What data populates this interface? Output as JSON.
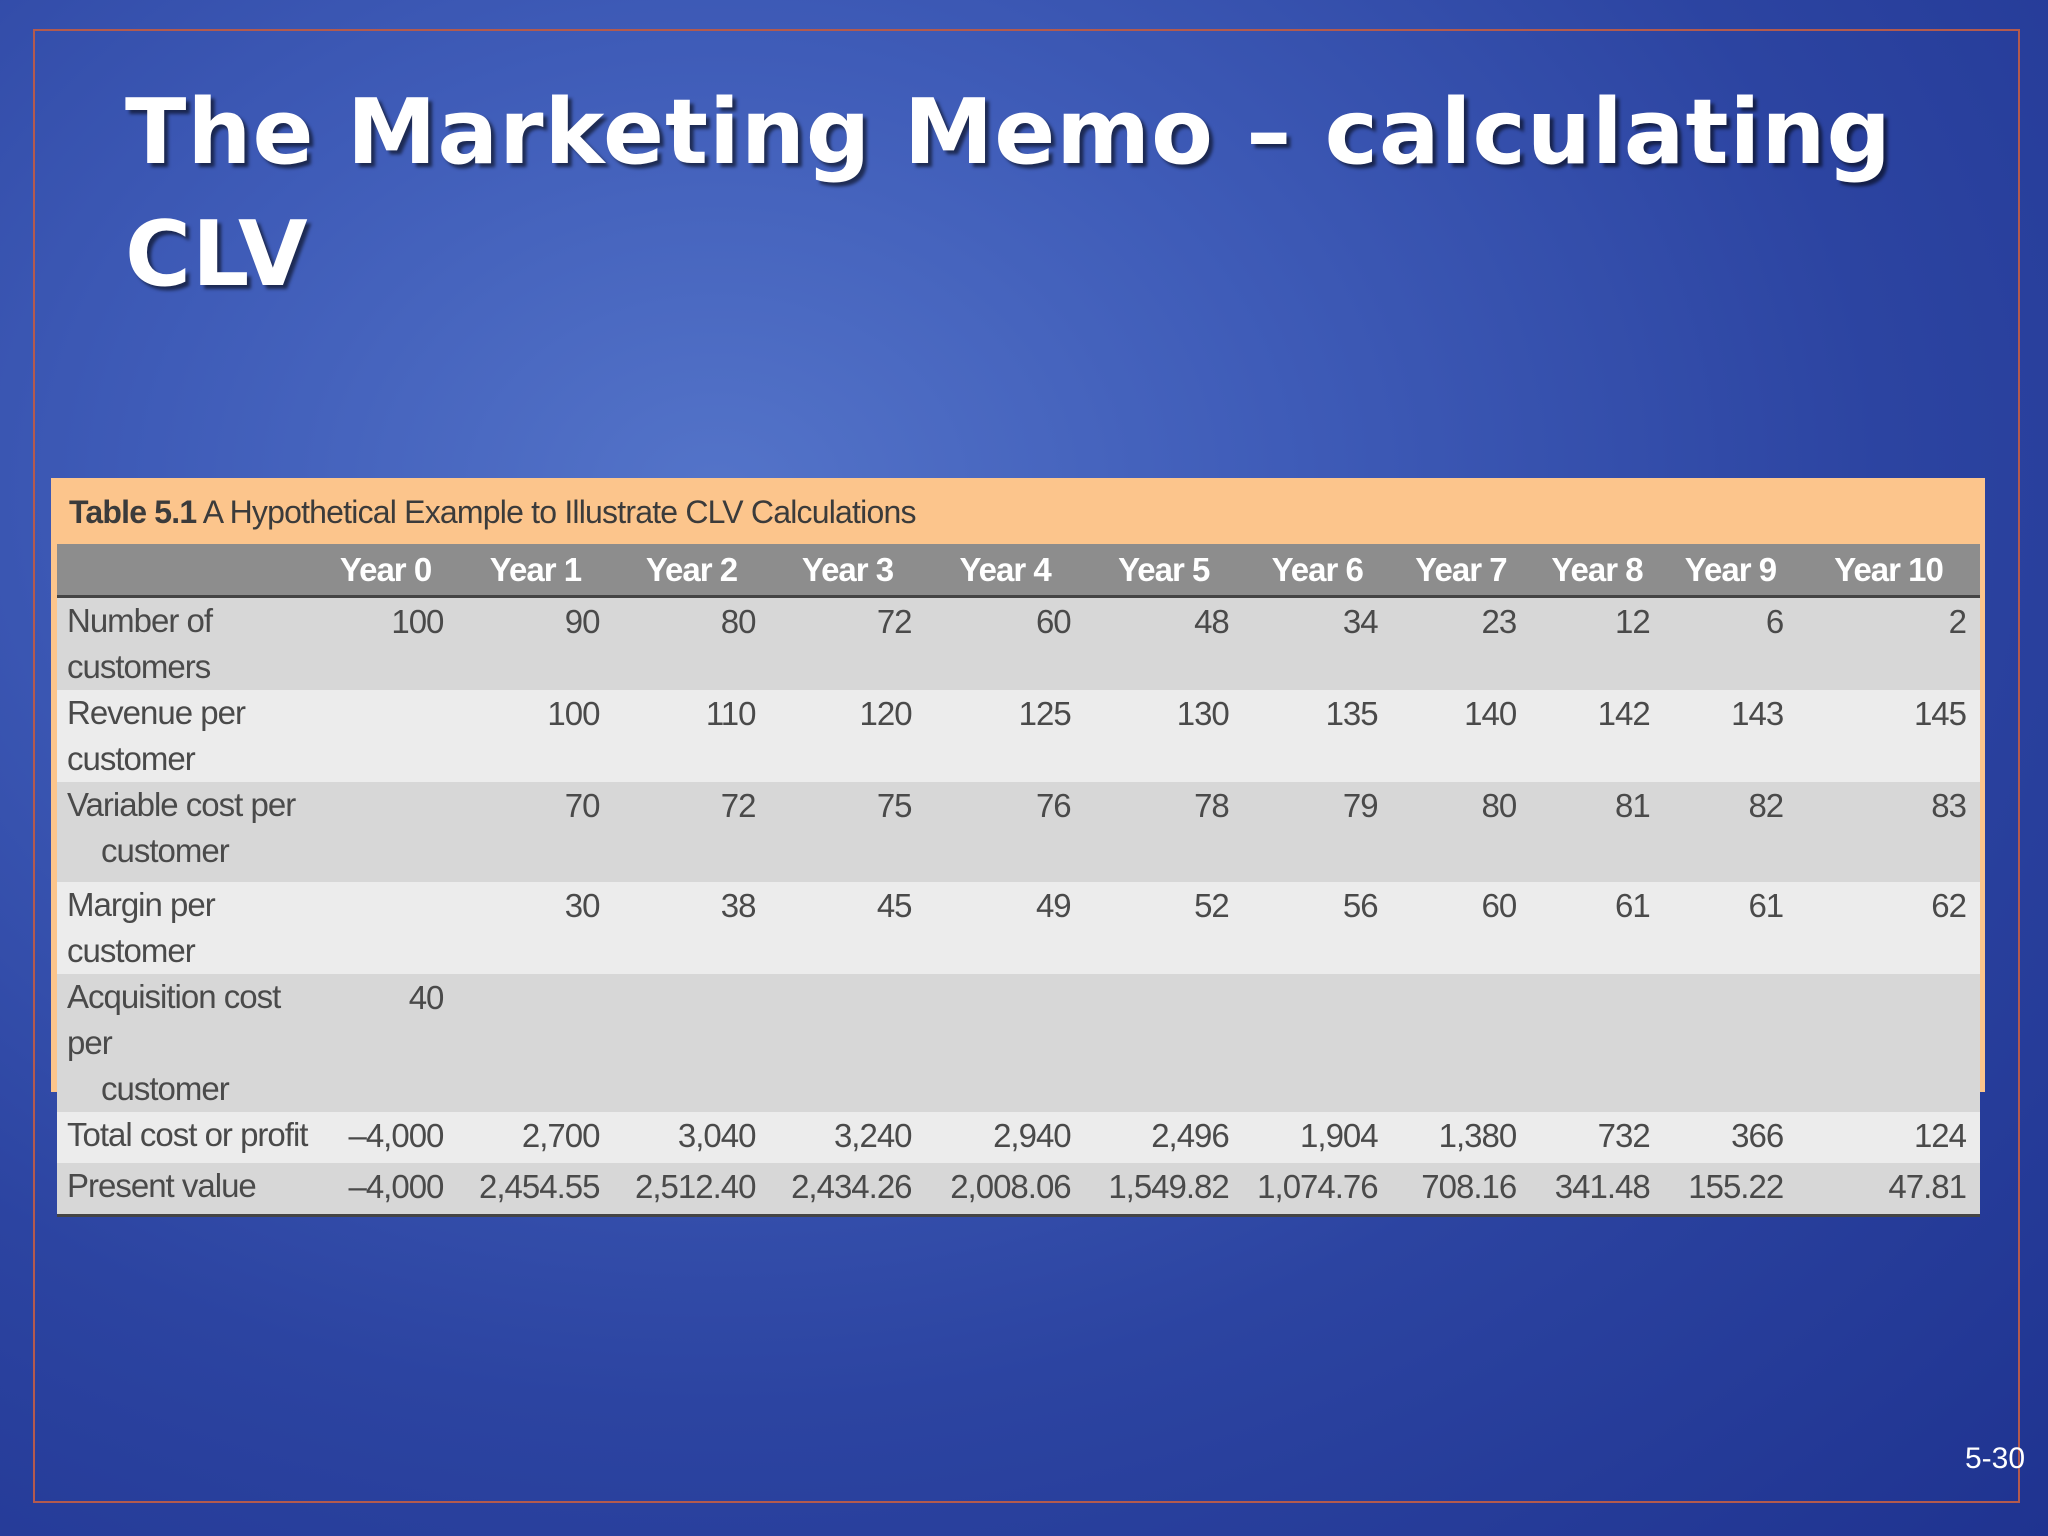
{
  "slide": {
    "title": "The Marketing Memo – calculating CLV",
    "page_number": "5-30"
  },
  "table": {
    "caption_bold": "Table 5.1",
    "caption_text": " A Hypothetical Example to Illustrate CLV Calculations",
    "columns": [
      "",
      "Year 0",
      "Year 1",
      "Year 2",
      "Year 3",
      "Year 4",
      "Year 5",
      "Year 6",
      "Year 7",
      "Year 8",
      "Year 9",
      "Year 10"
    ],
    "rows": [
      {
        "label": "Number of customers",
        "label_cont": "",
        "values": [
          "100",
          "90",
          "80",
          "72",
          "60",
          "48",
          "34",
          "23",
          "12",
          "6",
          "2"
        ]
      },
      {
        "label": "Revenue per customer",
        "label_cont": "",
        "values": [
          "",
          "100",
          "110",
          "120",
          "125",
          "130",
          "135",
          "140",
          "142",
          "143",
          "145"
        ]
      },
      {
        "label": "Variable cost per",
        "label_cont": "customer",
        "values": [
          "",
          "70",
          "72",
          "75",
          "76",
          "78",
          "79",
          "80",
          "81",
          "82",
          "83"
        ]
      },
      {
        "label": "Margin per customer",
        "label_cont": "",
        "values": [
          "",
          "30",
          "38",
          "45",
          "49",
          "52",
          "56",
          "60",
          "61",
          "61",
          "62"
        ]
      },
      {
        "label": "Acquisition cost per",
        "label_cont": "customer",
        "values": [
          "40",
          "",
          "",
          "",
          "",
          "",
          "",
          "",
          "",
          "",
          ""
        ]
      },
      {
        "label": "Total cost or profit",
        "label_cont": "",
        "values": [
          "–4,000",
          "2,700",
          "3,040",
          "3,240",
          "2,940",
          "2,496",
          "1,904",
          "1,380",
          "732",
          "366",
          "124"
        ]
      },
      {
        "label": "Present value",
        "label_cont": "",
        "values": [
          "–4,000",
          "2,454.55",
          "2,512.40",
          "2,434.26",
          "2,008.06",
          "1,549.82",
          "1,074.76",
          "708.16",
          "341.48",
          "155.22",
          "47.81"
        ]
      }
    ]
  },
  "colors": {
    "background": "#2c44a1",
    "frame_border": "#b35a4e",
    "table_panel": "#fcc58c",
    "header_fill": "#8d8d8d"
  }
}
